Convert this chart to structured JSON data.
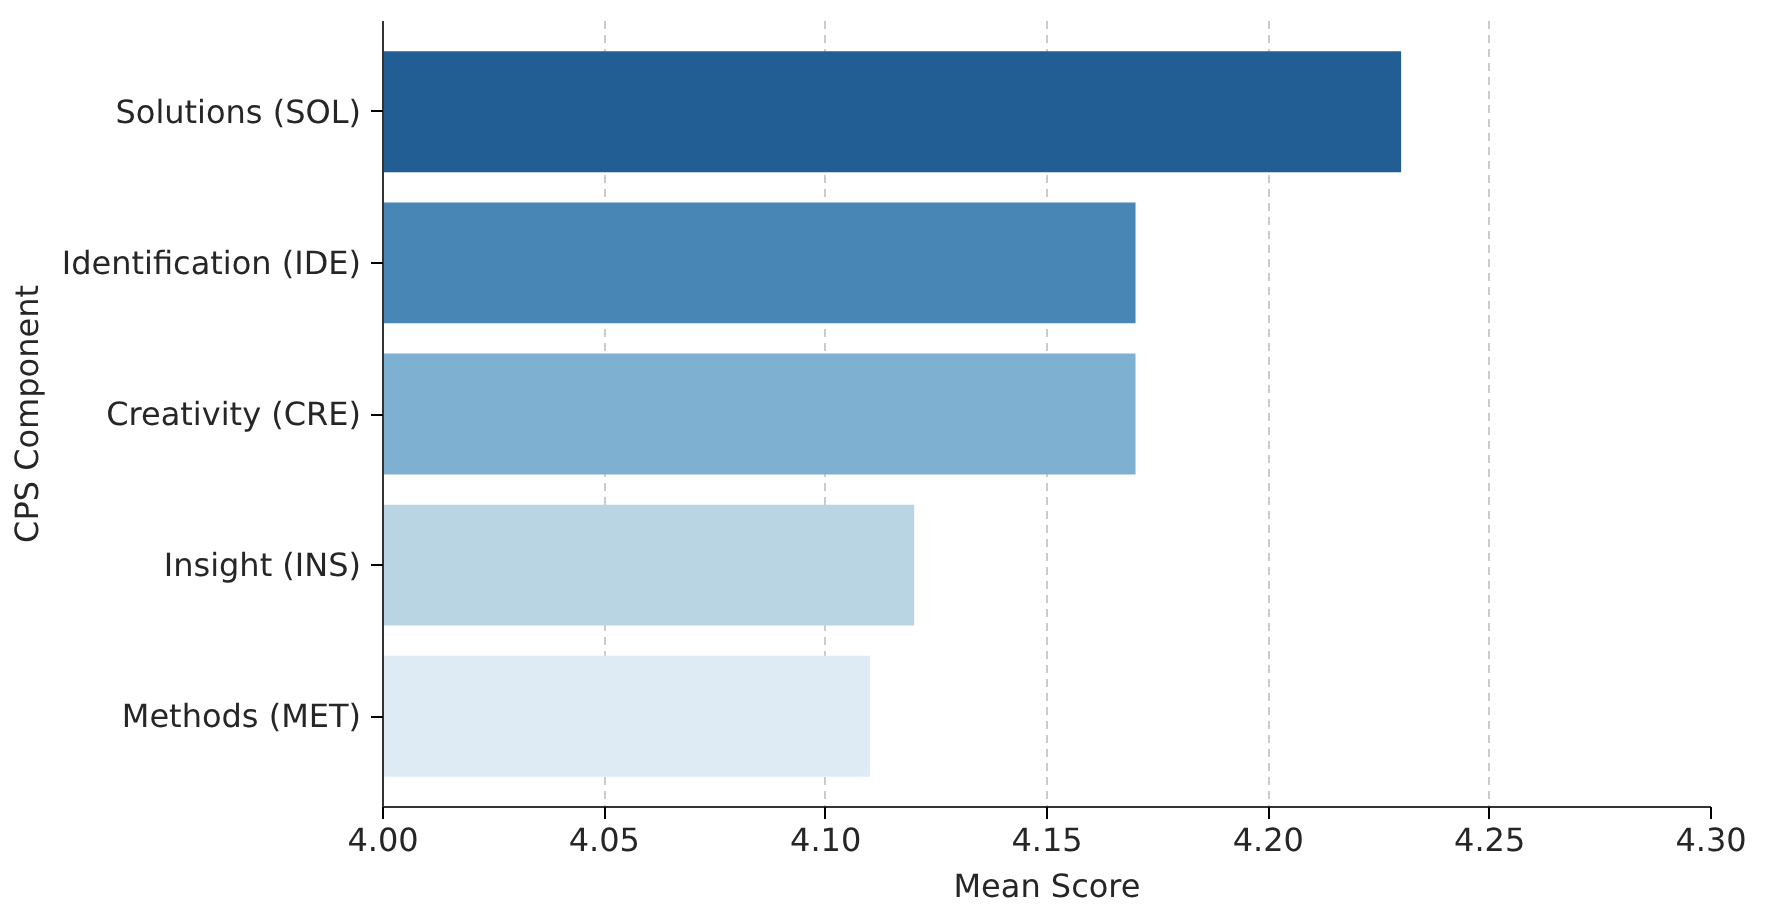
{
  "chart_data": {
    "type": "bar",
    "orientation": "horizontal",
    "xlabel": "Mean Score",
    "ylabel": "CPS Component",
    "categories": [
      "Solutions (SOL)",
      "Identification (IDE)",
      "Creativity (CRE)",
      "Insight (INS)",
      "Methods (MET)"
    ],
    "values": [
      4.23,
      4.17,
      4.17,
      4.12,
      4.11
    ],
    "colors": [
      "#225e94",
      "#4887b5",
      "#7eb1d1",
      "#b9d5e3",
      "#dfebf4"
    ],
    "xlim": [
      4.0,
      4.3
    ],
    "xticks": [
      {
        "value": 4.0,
        "label": "4.00"
      },
      {
        "value": 4.05,
        "label": "4.05"
      },
      {
        "value": 4.1,
        "label": "4.10"
      },
      {
        "value": 4.15,
        "label": "4.15"
      },
      {
        "value": 4.2,
        "label": "4.20"
      },
      {
        "value": 4.25,
        "label": "4.25"
      },
      {
        "value": 4.3,
        "label": "4.30"
      }
    ],
    "grid": "x"
  }
}
